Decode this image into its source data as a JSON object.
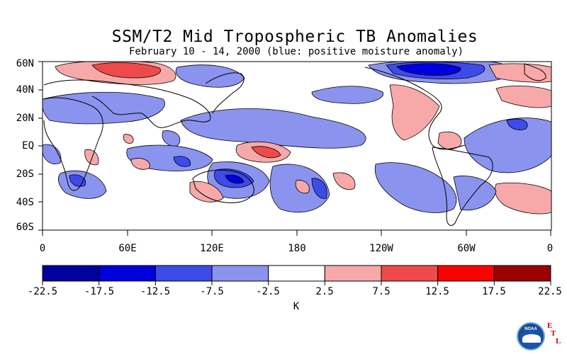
{
  "title": "SSM/T2 Mid Tropospheric TB Anomalies",
  "subtitle": "February 10 - 14, 2000 (blue: positive moisture anomaly)",
  "lat_labels": [
    "60N",
    "40N",
    "20N",
    "EQ",
    "20S",
    "40S",
    "60S"
  ],
  "lon_labels": [
    "0",
    "60E",
    "120E",
    "180",
    "120W",
    "60W",
    "0"
  ],
  "colorbar": {
    "labels": [
      "-22.5",
      "-17.5",
      "-12.5",
      "-7.5",
      "-2.5",
      "2.5",
      "7.5",
      "12.5",
      "17.5",
      "22.5"
    ],
    "colors": [
      "#00009e",
      "#0000dd",
      "#3d4be8",
      "#8a93ee",
      "#ffffff",
      "#f7a9a9",
      "#ef4a4a",
      "#ff0000",
      "#9c0000"
    ],
    "unit": "K"
  },
  "colors": {
    "negative_light": "#8a93ee",
    "negative_mid": "#3d4be8",
    "negative_dark": "#0000dd",
    "positive_light": "#f7a9a9",
    "positive_mid": "#ef4a4a"
  },
  "branding": {
    "logo_text": "NOAA",
    "lab_letters": [
      "E",
      "T",
      "L"
    ]
  }
}
